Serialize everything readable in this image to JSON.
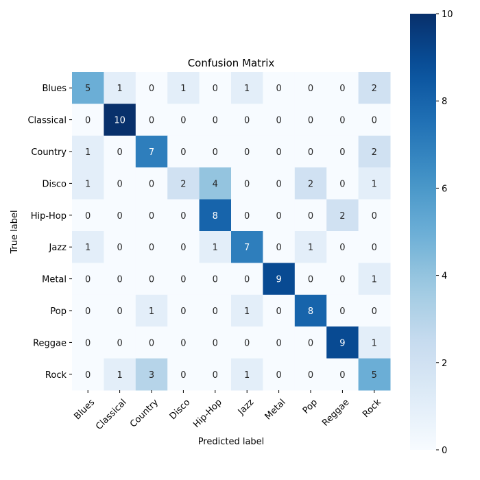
{
  "chart_data": {
    "type": "heatmap",
    "title": "Confusion Matrix",
    "xlabel": "Predicted label",
    "ylabel": "True label",
    "x_categories": [
      "Blues",
      "Classical",
      "Country",
      "Disco",
      "Hip-Hop",
      "Jazz",
      "Metal",
      "Pop",
      "Reggae",
      "Rock"
    ],
    "y_categories": [
      "Blues",
      "Classical",
      "Country",
      "Disco",
      "Hip-Hop",
      "Jazz",
      "Metal",
      "Pop",
      "Reggae",
      "Rock"
    ],
    "values": [
      [
        5,
        1,
        0,
        1,
        0,
        1,
        0,
        0,
        0,
        2
      ],
      [
        0,
        10,
        0,
        0,
        0,
        0,
        0,
        0,
        0,
        0
      ],
      [
        1,
        0,
        7,
        0,
        0,
        0,
        0,
        0,
        0,
        2
      ],
      [
        1,
        0,
        0,
        2,
        4,
        0,
        0,
        2,
        0,
        1
      ],
      [
        0,
        0,
        0,
        0,
        8,
        0,
        0,
        0,
        2,
        0
      ],
      [
        1,
        0,
        0,
        0,
        1,
        7,
        0,
        1,
        0,
        0
      ],
      [
        0,
        0,
        0,
        0,
        0,
        0,
        9,
        0,
        0,
        1
      ],
      [
        0,
        0,
        1,
        0,
        0,
        1,
        0,
        8,
        0,
        0
      ],
      [
        0,
        0,
        0,
        0,
        0,
        0,
        0,
        0,
        9,
        1
      ],
      [
        0,
        1,
        3,
        0,
        0,
        1,
        0,
        0,
        0,
        5
      ]
    ],
    "vmin": 0,
    "vmax": 10,
    "colormap": "Blues",
    "colorbar_ticks": [
      0,
      2,
      4,
      6,
      8,
      10
    ],
    "annotate": true,
    "grid": false
  }
}
